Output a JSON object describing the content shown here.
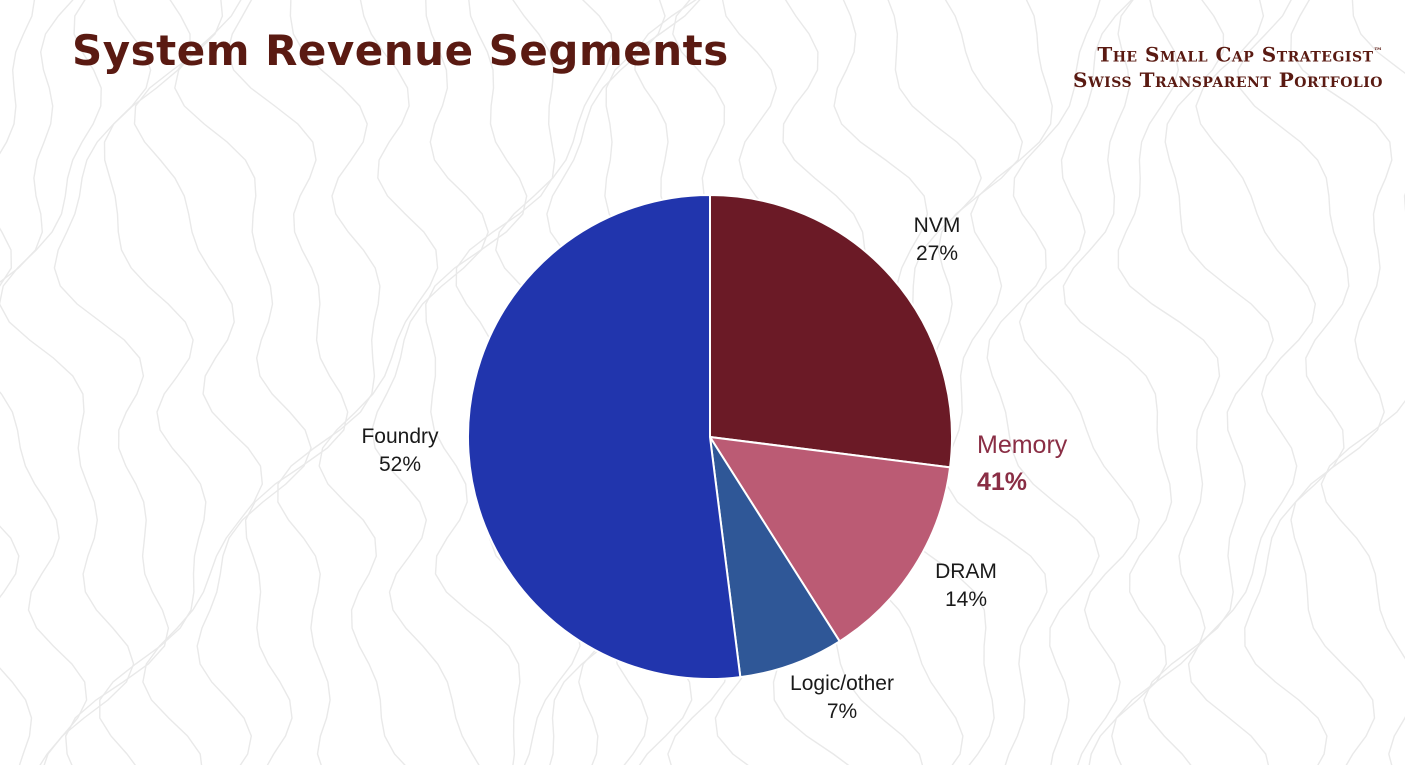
{
  "header": {
    "title": "System Revenue Segments",
    "brand_line1": "The Small Cap Strategist",
    "brand_tm": "™",
    "brand_line2": "Swiss Transparent Portfolio"
  },
  "chart_data": {
    "type": "pie",
    "title": "",
    "slices": [
      {
        "label": "NVM",
        "value": 27,
        "value_label": "27%",
        "color": "#6b1a26"
      },
      {
        "label": "DRAM",
        "value": 14,
        "value_label": "14%",
        "color": "#bb5b74"
      },
      {
        "label": "Logic/other",
        "value": 7,
        "value_label": "7%",
        "color": "#2f5797"
      },
      {
        "label": "Foundry",
        "value": 52,
        "value_label": "52%",
        "color": "#2135ad"
      }
    ],
    "annotations": [
      {
        "label": "Memory",
        "value_label": "41%",
        "color": "#8a2e45",
        "covers": [
          "NVM",
          "DRAM"
        ]
      }
    ]
  },
  "colors": {
    "title": "#5a1a12",
    "background_contours": "#e9e9e9"
  }
}
